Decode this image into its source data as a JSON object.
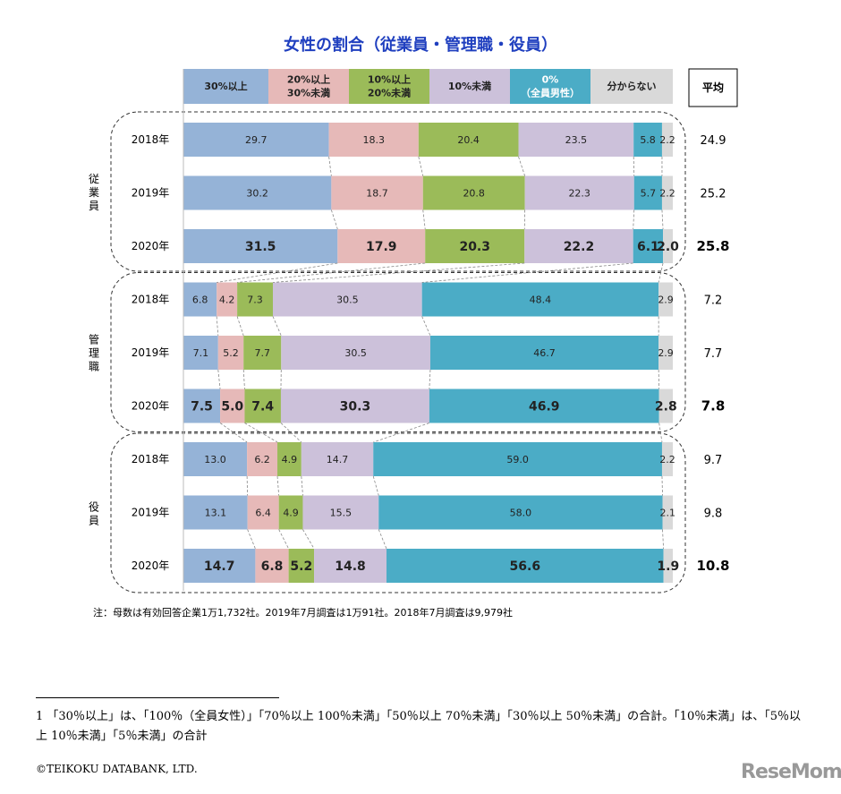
{
  "chart_data": {
    "type": "bar",
    "orientation": "horizontal-stacked-100",
    "title": "女性の割合（従業員・管理職・役員）",
    "legend": [
      "30%以上",
      "20%以上\n30%未満",
      "10%以上\n20%未満",
      "10%未満",
      "0%\n（全員男性）",
      "分からない"
    ],
    "legend_placement": "top",
    "colors": [
      "#95b3d7",
      "#e6b9b8",
      "#9bbb59",
      "#ccc1da",
      "#4bacc6",
      "#d9d9d9"
    ],
    "average_header": "平均",
    "groups": [
      {
        "name": "従業員",
        "rows": [
          {
            "year": "2018年",
            "values": [
              29.7,
              18.3,
              20.4,
              23.5,
              5.8,
              2.2
            ],
            "average": 24.9
          },
          {
            "year": "2019年",
            "values": [
              30.2,
              18.7,
              20.8,
              22.3,
              5.7,
              2.2
            ],
            "average": 25.2
          },
          {
            "year": "2020年",
            "values": [
              31.5,
              17.9,
              20.3,
              22.2,
              6.1,
              2.0
            ],
            "average": 25.8
          }
        ]
      },
      {
        "name": "管理職",
        "rows": [
          {
            "year": "2018年",
            "values": [
              6.8,
              4.2,
              7.3,
              30.5,
              48.4,
              2.9
            ],
            "average": 7.2
          },
          {
            "year": "2019年",
            "values": [
              7.1,
              5.2,
              7.7,
              30.5,
              46.7,
              2.9
            ],
            "average": 7.7
          },
          {
            "year": "2020年",
            "values": [
              7.5,
              5.0,
              7.4,
              30.3,
              46.9,
              2.8
            ],
            "average": 7.8
          }
        ]
      },
      {
        "name": "役員",
        "rows": [
          {
            "year": "2018年",
            "values": [
              13.0,
              6.2,
              4.9,
              14.7,
              59.0,
              2.2
            ],
            "average": 9.7
          },
          {
            "year": "2019年",
            "values": [
              13.1,
              6.4,
              4.9,
              15.5,
              58.0,
              2.1
            ],
            "average": 9.8
          },
          {
            "year": "2020年",
            "values": [
              14.7,
              6.8,
              5.2,
              14.8,
              56.6,
              1.9
            ],
            "average": 10.8
          }
        ]
      }
    ]
  },
  "note": "注：母数は有効回答企業1万1,732社。2019年7月調査は1万91社。2018年7月調査は9,979社",
  "footnote": "1 「30％以上」は、「100％（全員女性）」「70％以上 100％未満」「50％以上 70％未満」「30％以上 50％未満」の合計。「10％未満」は、「5％以上 10％未満」「5％未満」の合計",
  "copyright": "©TEIKOKU DATABANK, LTD.",
  "watermark": "ReseMom"
}
